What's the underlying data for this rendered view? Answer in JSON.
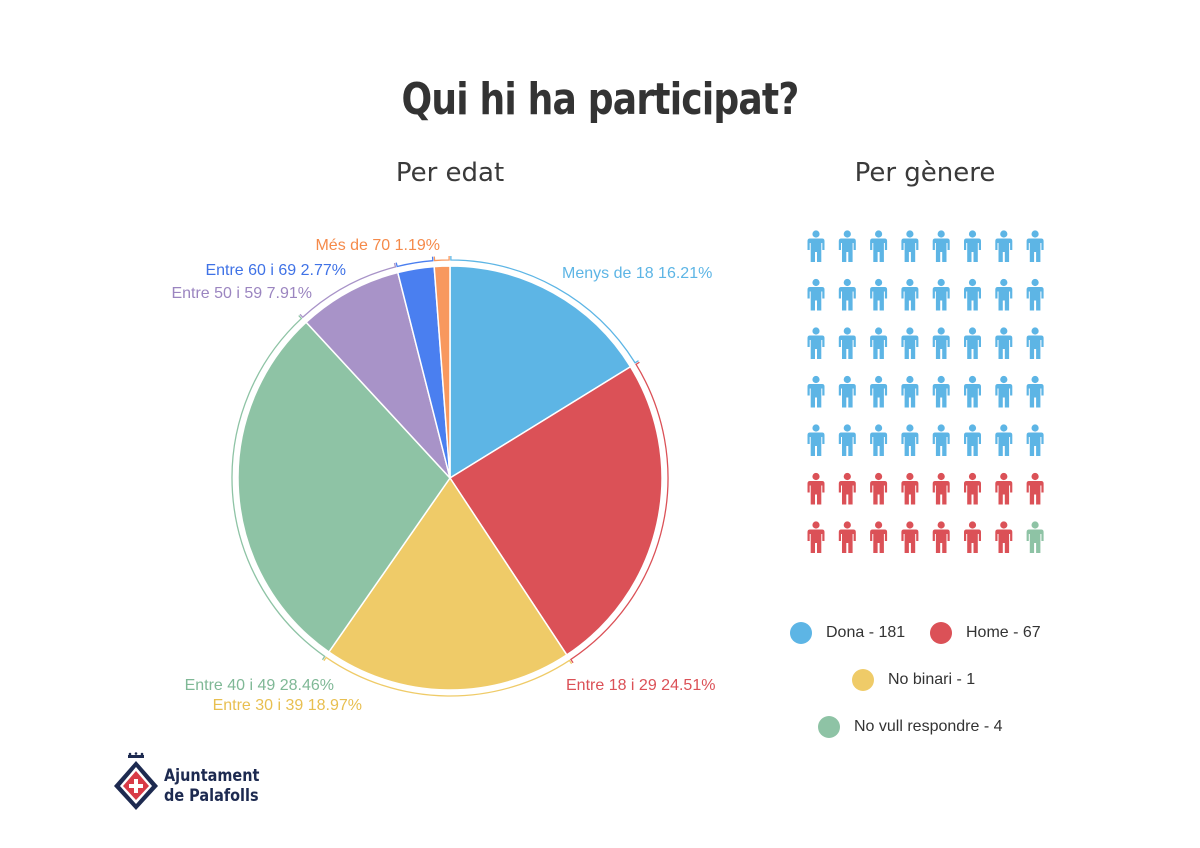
{
  "title": "Qui hi ha participat?",
  "age_section_title": "Per edat",
  "gender_section_title": "Per gènere",
  "chart_data": [
    {
      "type": "pie",
      "title": "Per edat",
      "slices": [
        {
          "label": "Menys de 18 16.21%",
          "value": 16.21,
          "color": "#5db5e5"
        },
        {
          "label": "Entre 18 i 29 24.51%",
          "value": 24.51,
          "color": "#db5157"
        },
        {
          "label": "Entre 30 i 39 18.97%",
          "value": 18.97,
          "color": "#efcb68"
        },
        {
          "label": "Entre 40 i 49 28.46%",
          "value": 28.46,
          "color": "#8ec3a5"
        },
        {
          "label": "Entre 50 i 59 7.91%",
          "value": 7.91,
          "color": "#a893c8"
        },
        {
          "label": "Entre 60 i 69 2.77%",
          "value": 2.77,
          "color": "#4a7ff0"
        },
        {
          "label": "Més de 70 1.19%",
          "value": 1.19,
          "color": "#f8985e"
        }
      ]
    },
    {
      "type": "pictogram",
      "title": "Per gènere",
      "columns": 8,
      "icons": [
        {
          "category": "Dona",
          "count": 40,
          "color": "#5db5e5"
        },
        {
          "category": "Home",
          "count": 15,
          "color": "#db5157"
        },
        {
          "category": "No vull respondre",
          "count": 1,
          "color": "#8ec3a5"
        }
      ],
      "legend": [
        {
          "label": "Dona - 181",
          "color": "#5db5e5"
        },
        {
          "label": "Home - 67",
          "color": "#db5157"
        },
        {
          "label": "No binari - 1",
          "color": "#efcb68"
        },
        {
          "label": "No vull respondre - 4",
          "color": "#8ec3a5"
        }
      ]
    }
  ],
  "logo": {
    "line1": "Ajuntament",
    "line2": "de Palafolls",
    "icon": "palafolls-coat-of-arms"
  }
}
